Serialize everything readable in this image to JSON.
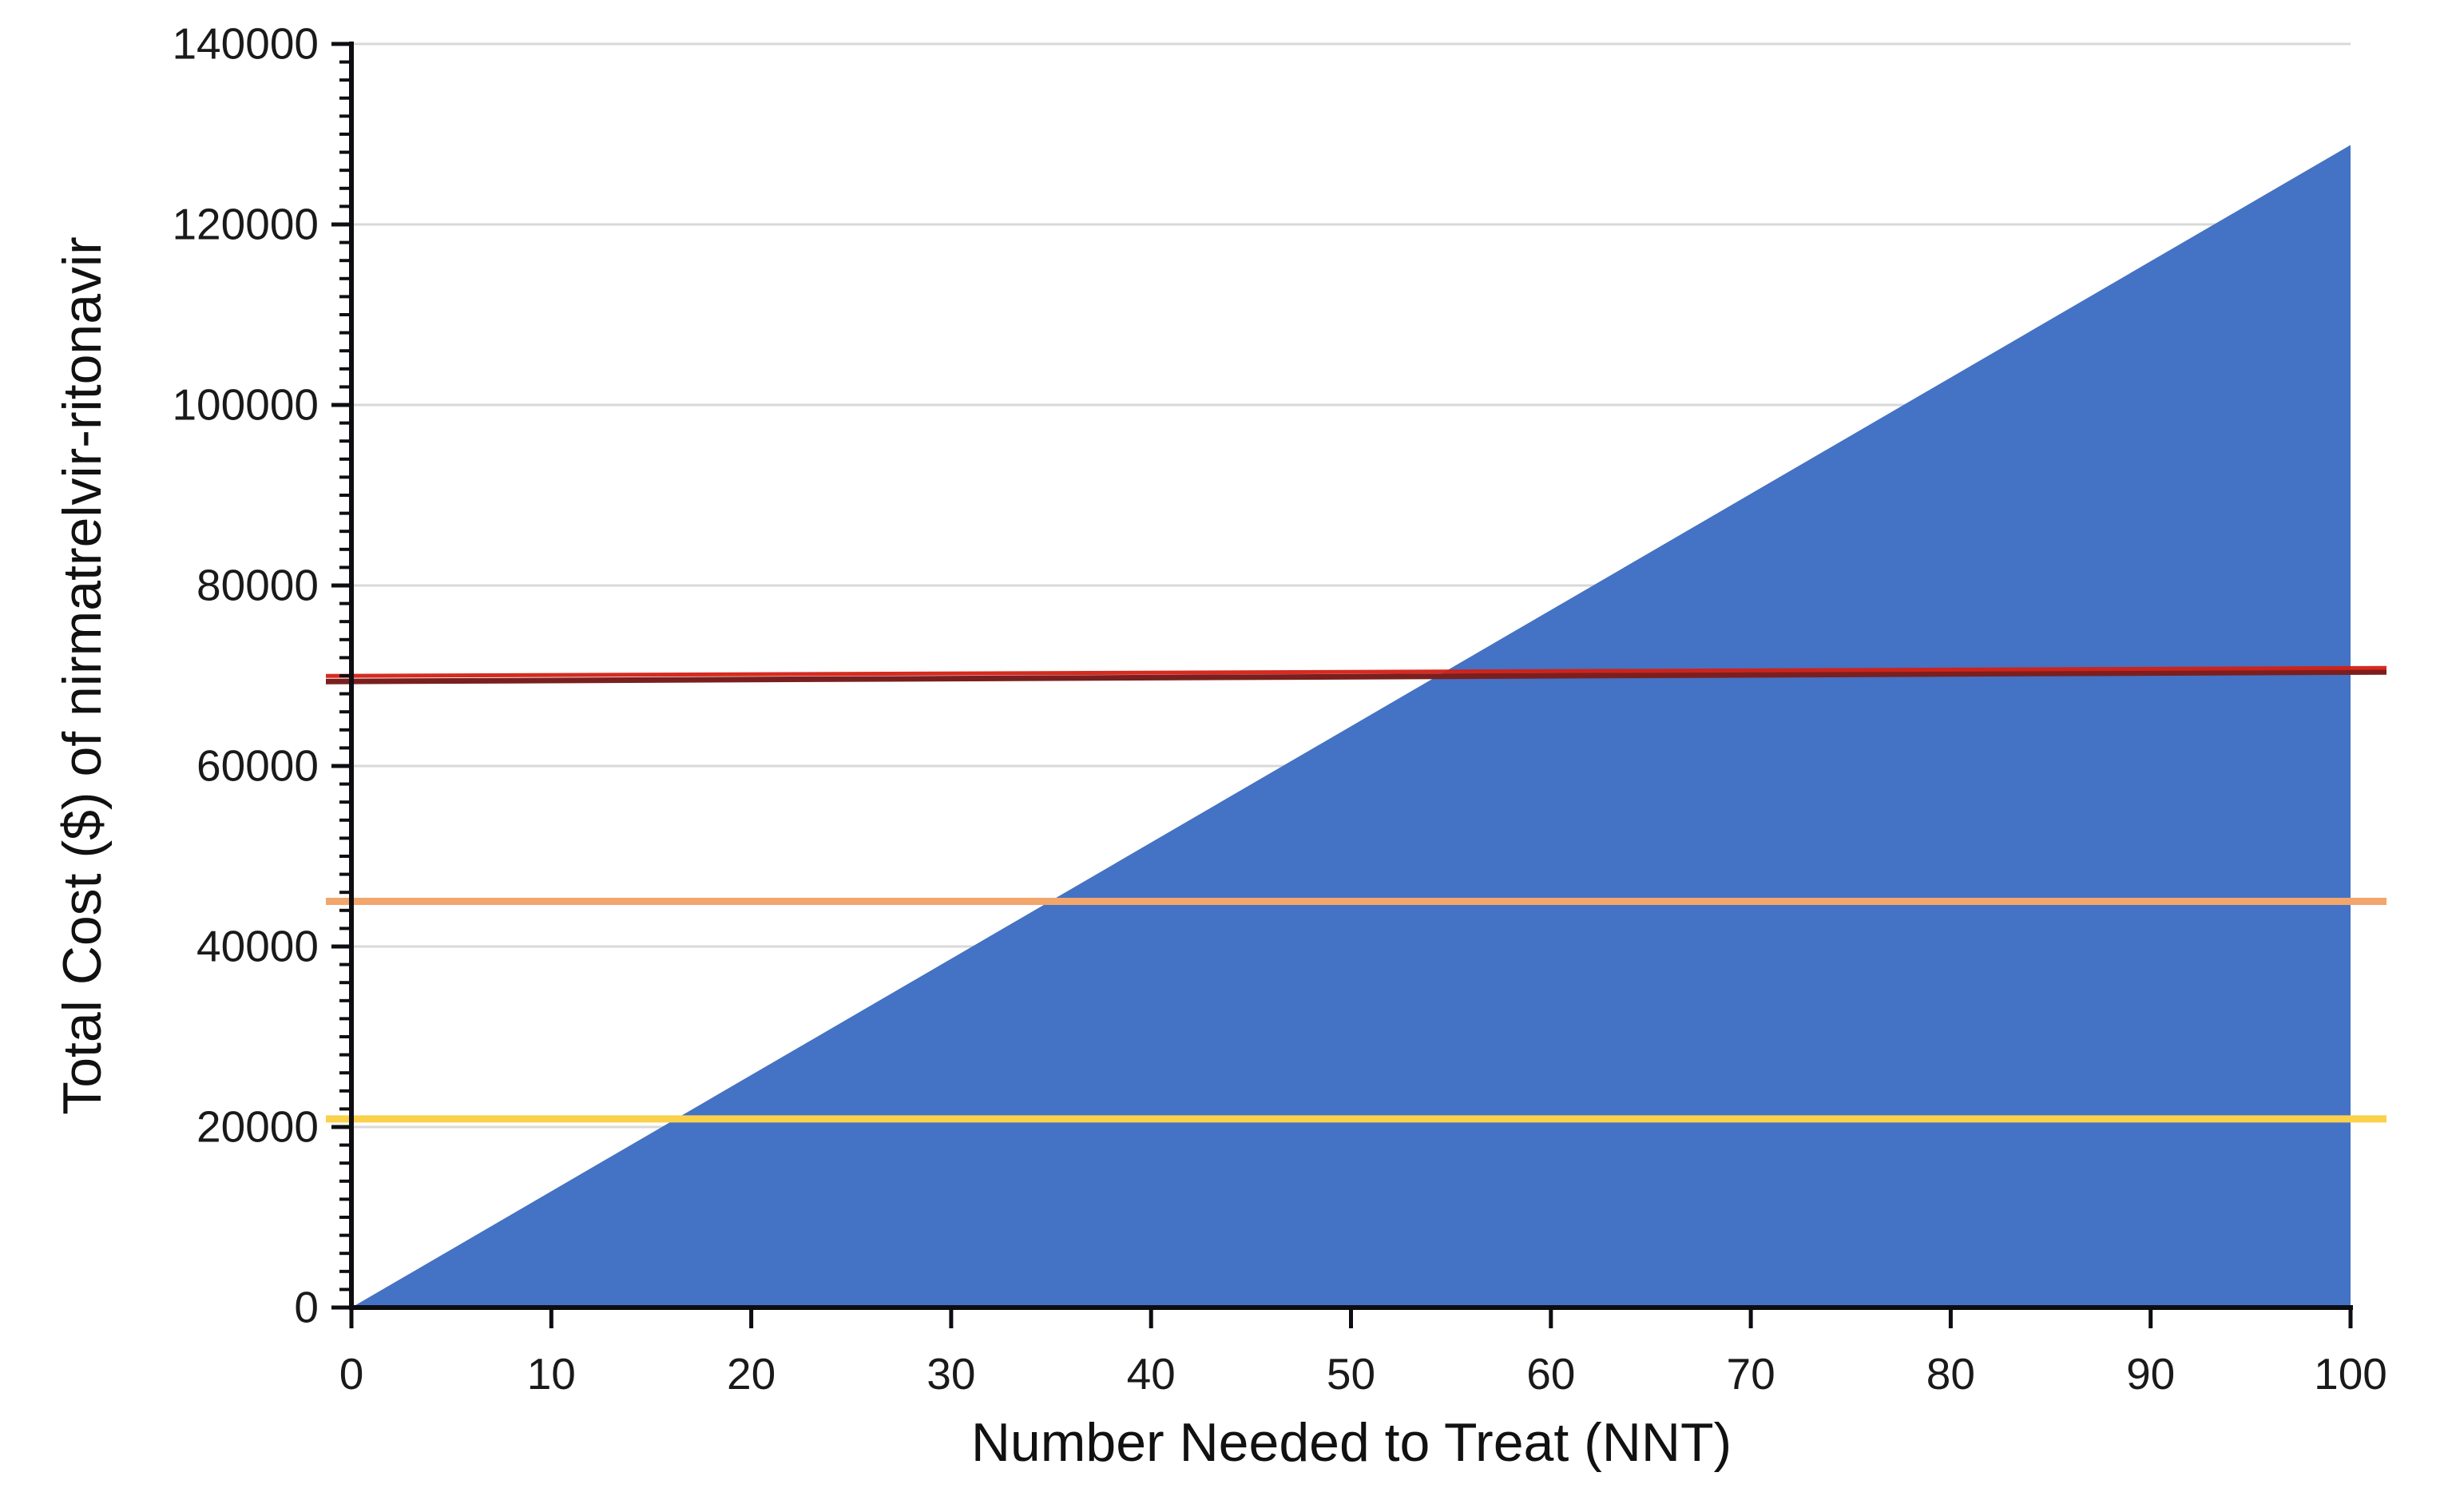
{
  "figure": {
    "title": "",
    "x_axis_title": "Number Needed to Treat (NNT)",
    "y_axis_title": "Total Cost ($) of nirmatrelvir-ritonavir"
  },
  "colors": {
    "area_blue": "#4472C4",
    "red_line_bright": "#D42015",
    "red_line_dark": "#7A1F1F",
    "orange_line": "#F2A66B",
    "yellow_line": "#FBD14C",
    "gridline": "#D9D9D9",
    "axis": "#0d0d12",
    "tick_text": "#1a1a1a"
  },
  "chart_data": {
    "type": "combo",
    "title": "",
    "legend": "none",
    "background": "#FFFFFF",
    "grid": "horizontal major gridlines only",
    "x_axis": {
      "label": "Number Needed to Treat (NNT)",
      "min": 0,
      "max": 100,
      "major_tick_interval": 10,
      "ticks": [
        0,
        10,
        20,
        30,
        40,
        50,
        60,
        70,
        80,
        90,
        100
      ]
    },
    "y_axis": {
      "label": "Total Cost ($) of nirmatrelvir-ritonavir",
      "min": 0,
      "max": 140000,
      "major_tick_interval": 20000,
      "minor_tick_interval": 2000,
      "ticks": [
        0,
        20000,
        40000,
        60000,
        80000,
        100000,
        120000,
        140000
      ]
    },
    "series": [
      {
        "name": "total-cost-area",
        "type": "area",
        "color": "#4472C4",
        "x": [
          0,
          100
        ],
        "y": [
          0,
          128800
        ],
        "note": "linear total cost, ≈ $1288 per treated patient × NNT"
      },
      {
        "name": "red-threshold-line",
        "type": "line",
        "approx_value": 70000,
        "color_top": "#D42015",
        "color_bottom": "#7A1F1F",
        "x": [
          0,
          100
        ],
        "y": [
          69800,
          70600
        ]
      },
      {
        "name": "orange-threshold-line",
        "type": "line",
        "approx_value": 45000,
        "color": "#F2A66B",
        "x": [
          0,
          100
        ],
        "y": [
          45000,
          45000
        ]
      },
      {
        "name": "yellow-threshold-line",
        "type": "line",
        "approx_value": 21000,
        "color": "#FBD14C",
        "x": [
          0,
          100
        ],
        "y": [
          20900,
          20900
        ]
      }
    ]
  }
}
